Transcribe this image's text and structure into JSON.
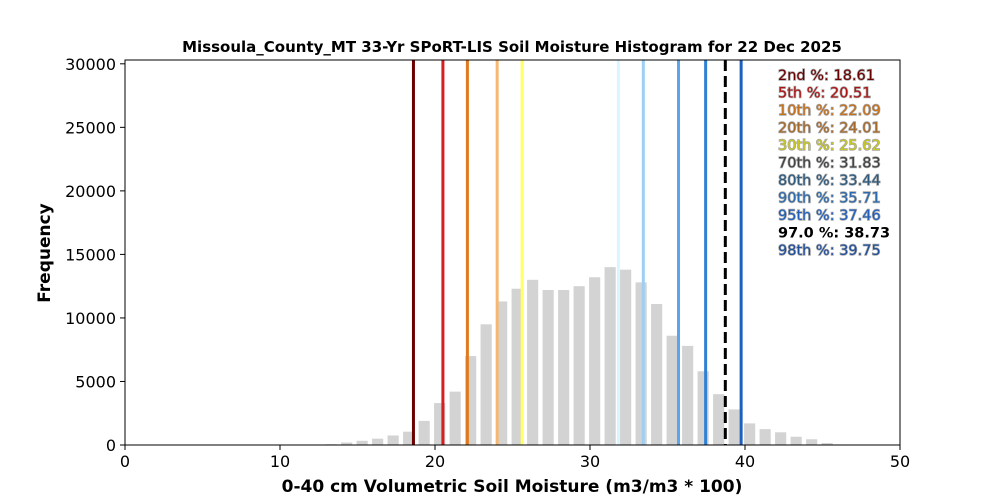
{
  "chart_data": {
    "type": "bar",
    "title": "Missoula_County_MT 33-Yr SPoRT-LIS Soil Moisture Histogram for 22 Dec 2025",
    "xlabel": "0-40 cm Volumetric Soil Moisture (m3/m3 * 100)",
    "ylabel": "Frequency",
    "xlim": [
      0,
      50
    ],
    "ylim": [
      0,
      30300
    ],
    "xticks": [
      0,
      10,
      20,
      30,
      40,
      50
    ],
    "yticks": [
      0,
      5000,
      10000,
      15000,
      20000,
      25000,
      30000
    ],
    "bar_color": "#d3d3d3",
    "bars": [
      {
        "x": 12.3,
        "y": 20
      },
      {
        "x": 13.3,
        "y": 60
      },
      {
        "x": 14.3,
        "y": 200
      },
      {
        "x": 15.3,
        "y": 330
      },
      {
        "x": 16.3,
        "y": 500
      },
      {
        "x": 17.3,
        "y": 750
      },
      {
        "x": 18.3,
        "y": 1050
      },
      {
        "x": 19.3,
        "y": 1900
      },
      {
        "x": 20.3,
        "y": 3300
      },
      {
        "x": 21.3,
        "y": 4200
      },
      {
        "x": 22.3,
        "y": 7000
      },
      {
        "x": 23.3,
        "y": 9500
      },
      {
        "x": 24.3,
        "y": 11300
      },
      {
        "x": 25.3,
        "y": 12300
      },
      {
        "x": 26.3,
        "y": 13000
      },
      {
        "x": 27.3,
        "y": 12200
      },
      {
        "x": 28.3,
        "y": 12200
      },
      {
        "x": 29.3,
        "y": 12500
      },
      {
        "x": 30.3,
        "y": 13200
      },
      {
        "x": 31.3,
        "y": 14000
      },
      {
        "x": 32.3,
        "y": 13800
      },
      {
        "x": 33.3,
        "y": 12800
      },
      {
        "x": 34.3,
        "y": 11100
      },
      {
        "x": 35.3,
        "y": 8600
      },
      {
        "x": 36.3,
        "y": 7800
      },
      {
        "x": 37.3,
        "y": 5800
      },
      {
        "x": 38.3,
        "y": 4000
      },
      {
        "x": 39.3,
        "y": 2800
      },
      {
        "x": 40.3,
        "y": 1700
      },
      {
        "x": 41.3,
        "y": 1250
      },
      {
        "x": 42.3,
        "y": 1000
      },
      {
        "x": 43.3,
        "y": 650
      },
      {
        "x": 44.3,
        "y": 450
      },
      {
        "x": 45.3,
        "y": 150
      },
      {
        "x": 46.3,
        "y": 40
      }
    ],
    "percentile_lines": [
      {
        "label": "2nd %",
        "value": 18.61,
        "color": "#6b0000"
      },
      {
        "label": "5th %",
        "value": 20.51,
        "color": "#d42020"
      },
      {
        "label": "10th %",
        "value": 22.09,
        "color": "#e07a1f"
      },
      {
        "label": "20th %",
        "value": 24.01,
        "color": "#f5b872"
      },
      {
        "label": "30th %",
        "value": 25.62,
        "color": "#ffff66"
      },
      {
        "label": "70th %",
        "value": 31.83,
        "color": "#d8f6ff"
      },
      {
        "label": "80th %",
        "value": 33.44,
        "color": "#9dcff5"
      },
      {
        "label": "90th %",
        "value": 35.71,
        "color": "#5aa5eb"
      },
      {
        "label": "95th %",
        "value": 37.46,
        "color": "#2f7fd4"
      },
      {
        "label": "98th %",
        "value": 39.75,
        "color": "#1f5fbf"
      }
    ],
    "current": {
      "label": "97.0 %",
      "value": 38.73,
      "color": "#000000"
    },
    "annotations": [
      {
        "text": "2nd %: 18.61",
        "color": "#6b0000"
      },
      {
        "text": "5th %: 20.51",
        "color": "#b01010"
      },
      {
        "text": "10th %: 22.09",
        "color": "#c87018"
      },
      {
        "text": "20th %: 24.01",
        "color": "#a86a28"
      },
      {
        "text": "30th %: 25.62",
        "color": "#c8c820"
      },
      {
        "text": "70th %: 31.83",
        "color": "#404040"
      },
      {
        "text": "80th %: 33.44",
        "color": "#2a5a80"
      },
      {
        "text": "90th %: 35.71",
        "color": "#2a6ab0"
      },
      {
        "text": "95th %: 37.46",
        "color": "#1f5fbf"
      },
      {
        "text": "97.0 %: 38.73",
        "color": "#000000"
      },
      {
        "text": "98th %: 39.75",
        "color": "#1f4f9f"
      }
    ]
  }
}
